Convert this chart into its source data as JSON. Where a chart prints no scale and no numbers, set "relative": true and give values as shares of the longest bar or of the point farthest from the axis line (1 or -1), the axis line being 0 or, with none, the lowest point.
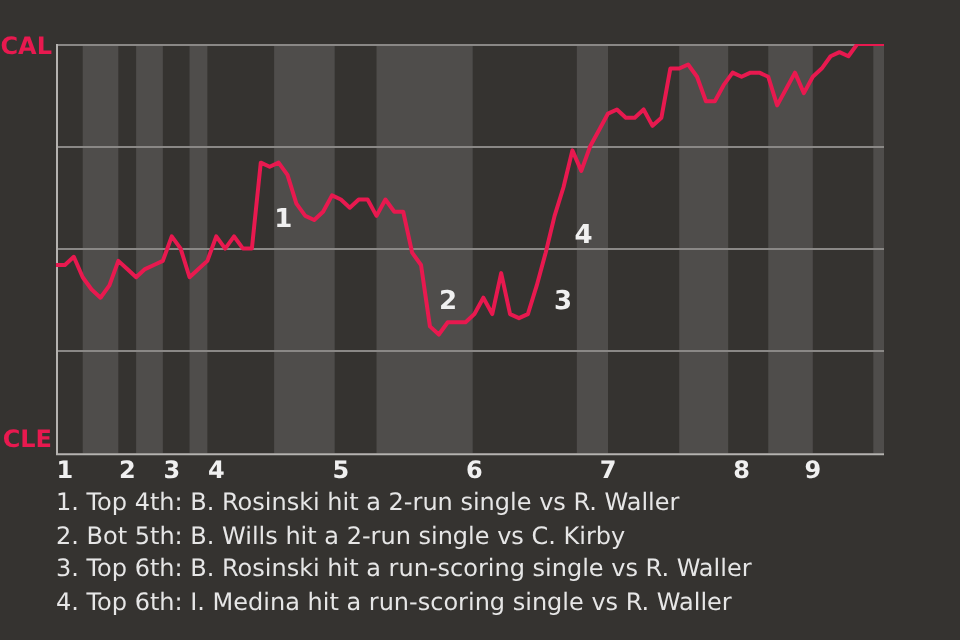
{
  "chart_data": {
    "type": "line",
    "categories": [
      null,
      "1",
      null,
      null,
      null,
      null,
      null,
      null,
      "2",
      null,
      null,
      null,
      null,
      "3",
      null,
      null,
      null,
      null,
      "4",
      null,
      null,
      null,
      null,
      null,
      null,
      null,
      null,
      null,
      null,
      null,
      null,
      null,
      "5",
      null,
      null,
      null,
      null,
      null,
      null,
      null,
      null,
      null,
      null,
      null,
      null,
      null,
      null,
      "6",
      null,
      null,
      null,
      null,
      null,
      null,
      null,
      null,
      null,
      null,
      null,
      null,
      null,
      null,
      "7",
      null,
      null,
      null,
      null,
      null,
      null,
      null,
      null,
      null,
      null,
      null,
      null,
      null,
      null,
      "8",
      null,
      null,
      null,
      null,
      null,
      null,
      null,
      "9",
      null,
      null,
      null,
      null,
      null,
      null,
      null,
      null
    ],
    "relative": true,
    "series": [
      {
        "color": "#e8194f",
        "values": [
          0.46,
          0.46,
          0.48,
          0.43,
          0.4,
          0.38,
          0.41,
          0.47,
          0.45,
          0.43,
          0.45,
          0.46,
          0.47,
          0.53,
          0.5,
          0.43,
          0.45,
          0.47,
          0.53,
          0.5,
          0.53,
          0.5,
          0.5,
          0.71,
          0.7,
          0.71,
          0.68,
          0.61,
          0.58,
          0.57,
          0.59,
          0.63,
          0.62,
          0.6,
          0.62,
          0.62,
          0.58,
          0.62,
          0.59,
          0.59,
          0.49,
          0.46,
          0.31,
          0.29,
          0.32,
          0.32,
          0.32,
          0.34,
          0.38,
          0.34,
          0.44,
          0.34,
          0.33,
          0.34,
          0.41,
          0.49,
          0.58,
          0.65,
          0.74,
          0.69,
          0.75,
          0.79,
          0.83,
          0.84,
          0.82,
          0.82,
          0.84,
          0.8,
          0.82,
          0.94,
          0.94,
          0.95,
          0.92,
          0.86,
          0.86,
          0.9,
          0.93,
          0.92,
          0.93,
          0.93,
          0.92,
          0.85,
          0.89,
          0.93,
          0.88,
          0.92,
          0.94,
          0.97,
          0.98,
          0.97,
          1,
          1,
          1,
          1
        ]
      }
    ],
    "grid": "y",
    "annotations": [
      "CAL",
      "CLE",
      "1",
      "2",
      "3",
      "4",
      "1. Top 4th: B. Rosinski hit a 2-run single vs R. Waller",
      "2. Bot 5th: B. Wills hit a 2-run single vs C. Kirby",
      "3. Top 6th: B. Rosinski hit a run-scoring single vs R. Waller",
      "4. Top 6th: I. Medina hit a run-scoring single vs R. Waller"
    ]
  }
}
